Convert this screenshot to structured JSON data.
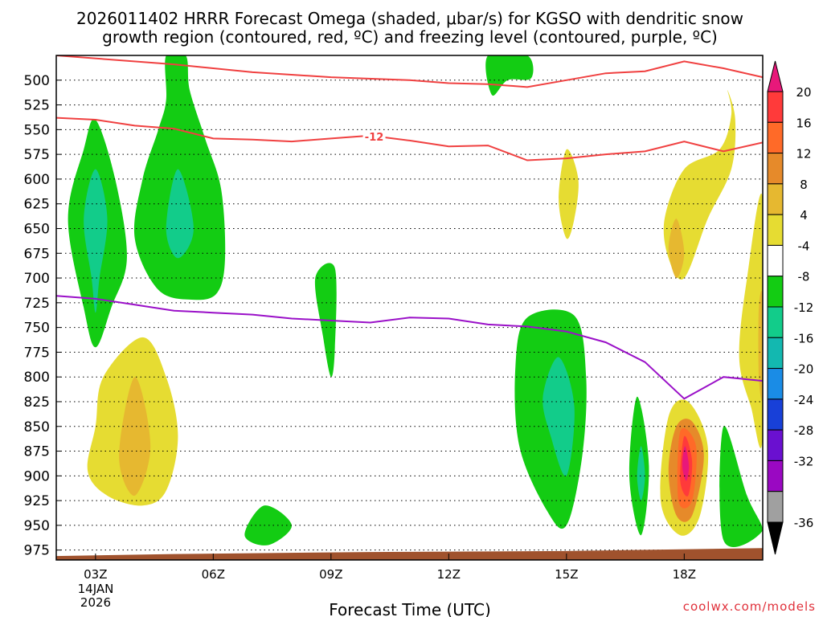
{
  "chart_data": {
    "type": "heatmap",
    "title_line1": "2026011402 HRRR Forecast Omega (shaded, μbar/s) for KGSO with dendritic snow",
    "title_line2": "growth region (contoured, red, ºC) and freezing level (contoured, purple, ºC)",
    "xlabel": "Forecast Time (UTC)",
    "credit": "coolwx.com/models",
    "x_range": [
      2,
      20
    ],
    "y_range": [
      475,
      985
    ],
    "x_ticks": [
      {
        "x": 3,
        "label": "03Z"
      },
      {
        "x": 6,
        "label": "06Z"
      },
      {
        "x": 9,
        "label": "09Z"
      },
      {
        "x": 12,
        "label": "12Z"
      },
      {
        "x": 15,
        "label": "15Z"
      },
      {
        "x": 18,
        "label": "18Z"
      }
    ],
    "date_label_line1": "14JAN",
    "date_label_line2": "2026",
    "y_ticks": [
      500,
      525,
      550,
      575,
      600,
      625,
      650,
      675,
      700,
      725,
      750,
      775,
      800,
      825,
      850,
      875,
      900,
      925,
      950,
      975
    ],
    "colorbar": {
      "labels": [
        "20",
        "16",
        "12",
        "8",
        "4",
        "-4",
        "-8",
        "-12",
        "-16",
        "-20",
        "-24",
        "-28",
        "-32",
        "-36"
      ],
      "segments": [
        {
          "color": "#ff3a3a",
          "label": "16 to 20"
        },
        {
          "color": "#ff6a28",
          "label": "12 to 16"
        },
        {
          "color": "#e68a2a",
          "label": "8 to 12"
        },
        {
          "color": "#e6b830",
          "label": "4 to 8"
        },
        {
          "color": "#e6dc32",
          "label": "4 to 4 (light)"
        },
        {
          "color": "#ffffff",
          "label": "-4 to 4"
        },
        {
          "color": "#13cc13",
          "label": "-8 to -4"
        },
        {
          "color": "#12cc8a",
          "label": "-12 to -8"
        },
        {
          "color": "#13b8b0",
          "label": "-16 to -12"
        },
        {
          "color": "#1a8ce6",
          "label": "-20 to -16"
        },
        {
          "color": "#1840d8",
          "label": "-24 to -20"
        },
        {
          "color": "#6a10d0",
          "label": "-28 to -24"
        },
        {
          "color": "#9a08c2",
          "label": "-32 to -28"
        },
        {
          "color": "#a0a0a0",
          "label": "-36 to -32"
        }
      ],
      "top_color": "#e8187a",
      "bottom_color": "#000000"
    },
    "contours": {
      "dgz_label": "-12",
      "dgz_upper": [
        [
          2,
          470
        ],
        [
          5,
          484
        ],
        [
          7,
          492
        ],
        [
          9,
          497
        ],
        [
          11,
          500
        ],
        [
          12,
          503
        ],
        [
          13,
          504
        ],
        [
          14,
          507
        ],
        [
          15,
          500
        ],
        [
          16,
          493
        ],
        [
          17,
          491
        ],
        [
          18,
          481
        ],
        [
          19,
          488
        ],
        [
          20,
          497
        ]
      ],
      "dgz_lower": [
        [
          2,
          538
        ],
        [
          3,
          540
        ],
        [
          4,
          546
        ],
        [
          5,
          549
        ],
        [
          6,
          559
        ],
        [
          7,
          560
        ],
        [
          8,
          562
        ],
        [
          9,
          559
        ],
        [
          10,
          556
        ],
        [
          11,
          561
        ],
        [
          12,
          567
        ],
        [
          13,
          566
        ],
        [
          14,
          581
        ],
        [
          15,
          579
        ],
        [
          16,
          575
        ],
        [
          17,
          572
        ],
        [
          18,
          562
        ],
        [
          19,
          572
        ],
        [
          20,
          563
        ]
      ],
      "freezing_level": [
        [
          2,
          718
        ],
        [
          3,
          721
        ],
        [
          4,
          727
        ],
        [
          5,
          733
        ],
        [
          6,
          735
        ],
        [
          7,
          737
        ],
        [
          8,
          741
        ],
        [
          9,
          743
        ],
        [
          10,
          745
        ],
        [
          11,
          740
        ],
        [
          12,
          741
        ],
        [
          13,
          747
        ],
        [
          14,
          749
        ],
        [
          15,
          754
        ],
        [
          16,
          765
        ],
        [
          17,
          785
        ],
        [
          18,
          822
        ],
        [
          19,
          800
        ],
        [
          20,
          804
        ]
      ]
    },
    "terrain_pressure": [
      [
        2,
        981
      ],
      [
        5,
        979
      ],
      [
        10,
        977
      ],
      [
        15,
        976
      ],
      [
        20,
        973
      ]
    ],
    "shaded_regions": [
      {
        "kind": "upward",
        "level": "-8 to -4",
        "color": "#13cc13",
        "shape": [
          [
            3,
            540
          ],
          [
            3.5,
            600
          ],
          [
            3.8,
            680
          ],
          [
            3.4,
            730
          ],
          [
            3,
            770
          ],
          [
            2.7,
            730
          ],
          [
            2.3,
            640
          ],
          [
            2.7,
            570
          ]
        ]
      },
      {
        "kind": "upward",
        "level": "-12 to -8",
        "color": "#12cc8a",
        "shape": [
          [
            3,
            590
          ],
          [
            3.3,
            640
          ],
          [
            3.1,
            700
          ],
          [
            3,
            735
          ],
          [
            2.9,
            700
          ],
          [
            2.7,
            640
          ]
        ]
      },
      {
        "kind": "upward",
        "level": "-8 to -4",
        "color": "#13cc13",
        "shape": [
          [
            4.8,
            470
          ],
          [
            5.3,
            470
          ],
          [
            5.4,
            510
          ],
          [
            5.8,
            560
          ],
          [
            6.2,
            610
          ],
          [
            6.3,
            680
          ],
          [
            6.1,
            715
          ],
          [
            5.5,
            722
          ],
          [
            4.6,
            712
          ],
          [
            4,
            660
          ],
          [
            4.2,
            600
          ],
          [
            4.6,
            550
          ],
          [
            4.8,
            520
          ]
        ]
      },
      {
        "kind": "upward",
        "level": "-12 to -8",
        "color": "#12cc8a",
        "shape": [
          [
            5.1,
            590
          ],
          [
            5.5,
            650
          ],
          [
            5.1,
            680
          ],
          [
            4.8,
            650
          ]
        ]
      },
      {
        "kind": "downward",
        "level": "4 to 8",
        "color": "#e6dc32",
        "shape": [
          [
            3.2,
            800
          ],
          [
            4.2,
            760
          ],
          [
            4.8,
            800
          ],
          [
            5.1,
            860
          ],
          [
            4.8,
            915
          ],
          [
            4.2,
            930
          ],
          [
            3.3,
            920
          ],
          [
            2.8,
            895
          ],
          [
            3.0,
            850
          ]
        ]
      },
      {
        "kind": "downward",
        "level": "8 to 12",
        "color": "#e6b830",
        "shape": [
          [
            4.0,
            800
          ],
          [
            4.4,
            870
          ],
          [
            4.0,
            920
          ],
          [
            3.6,
            880
          ]
        ]
      },
      {
        "kind": "upward",
        "level": "-8 to -4",
        "color": "#13cc13",
        "shape": [
          [
            8.6,
            700
          ],
          [
            9.1,
            690
          ],
          [
            9.1,
            770
          ],
          [
            9.0,
            800
          ],
          [
            8.8,
            760
          ]
        ]
      },
      {
        "kind": "upward",
        "level": "-8 to -4",
        "color": "#13cc13",
        "shape": [
          [
            7.3,
            930
          ],
          [
            8.0,
            950
          ],
          [
            7.4,
            970
          ],
          [
            6.8,
            960
          ]
        ]
      },
      {
        "kind": "upward",
        "level": "-8 to -4",
        "color": "#13cc13",
        "shape": [
          [
            13.0,
            475
          ],
          [
            14.0,
            475
          ],
          [
            14.1,
            498
          ],
          [
            13.5,
            500
          ],
          [
            13.1,
            515
          ]
        ]
      },
      {
        "kind": "upward",
        "level": "-8 to -4",
        "color": "#13cc13",
        "shape": [
          [
            14.0,
            740
          ],
          [
            15.2,
            738
          ],
          [
            15.5,
            800
          ],
          [
            15.4,
            880
          ],
          [
            15.0,
            950
          ],
          [
            14.5,
            935
          ],
          [
            13.8,
            870
          ],
          [
            13.7,
            790
          ]
        ]
      },
      {
        "kind": "upward",
        "level": "-12 to -8",
        "color": "#12cc8a",
        "shape": [
          [
            14.8,
            780
          ],
          [
            15.2,
            830
          ],
          [
            15.0,
            900
          ],
          [
            14.6,
            860
          ],
          [
            14.4,
            820
          ]
        ]
      },
      {
        "kind": "upward",
        "level": "-8 to -4",
        "color": "#13cc13",
        "shape": [
          [
            16.8,
            820
          ],
          [
            17.1,
            890
          ],
          [
            16.9,
            960
          ],
          [
            16.6,
            900
          ]
        ]
      },
      {
        "kind": "upward",
        "level": "-12 to -8",
        "color": "#12cc8a",
        "shape": [
          [
            16.9,
            870
          ],
          [
            17.0,
            900
          ],
          [
            16.9,
            925
          ],
          [
            16.8,
            900
          ]
        ]
      },
      {
        "kind": "upward",
        "level": "-8 to -4",
        "color": "#13cc13",
        "shape": [
          [
            19.0,
            850
          ],
          [
            19.6,
            920
          ],
          [
            20,
            955
          ],
          [
            19,
            965
          ]
        ]
      },
      {
        "kind": "downward",
        "level": "4 to 8",
        "color": "#e6dc32",
        "shape": [
          [
            15.0,
            570
          ],
          [
            15.3,
            600
          ],
          [
            15.2,
            640
          ],
          [
            15.0,
            660
          ],
          [
            14.8,
            620
          ]
        ]
      },
      {
        "kind": "downward",
        "level": "4 to 8",
        "color": "#e6dc32",
        "shape": [
          [
            17.5,
            640
          ],
          [
            18.0,
            590
          ],
          [
            18.9,
            570
          ],
          [
            19.2,
            535
          ],
          [
            19.1,
            510
          ],
          [
            19.3,
            540
          ],
          [
            19.2,
            590
          ],
          [
            18.6,
            640
          ],
          [
            18.0,
            700
          ],
          [
            17.6,
            680
          ]
        ]
      },
      {
        "kind": "downward",
        "level": "8 to 12",
        "color": "#e6b830",
        "shape": [
          [
            17.8,
            640
          ],
          [
            18.0,
            675
          ],
          [
            17.8,
            700
          ],
          [
            17.6,
            670
          ]
        ]
      },
      {
        "kind": "downward",
        "level": "4 to 8",
        "color": "#e6dc32",
        "shape": [
          [
            17.6,
            840
          ],
          [
            18.1,
            825
          ],
          [
            18.6,
            870
          ],
          [
            18.4,
            940
          ],
          [
            17.9,
            960
          ],
          [
            17.4,
            925
          ]
        ]
      },
      {
        "kind": "downward",
        "level": "8 to 12",
        "color": "#e68a2a",
        "shape": [
          [
            17.8,
            850
          ],
          [
            18.2,
            845
          ],
          [
            18.5,
            880
          ],
          [
            18.2,
            940
          ],
          [
            17.8,
            940
          ],
          [
            17.6,
            895
          ]
        ]
      },
      {
        "kind": "downward",
        "level": "12 to 16",
        "color": "#ff6a28",
        "shape": [
          [
            17.9,
            855
          ],
          [
            18.3,
            870
          ],
          [
            18.2,
            925
          ],
          [
            17.85,
            925
          ]
        ]
      },
      {
        "kind": "downward",
        "level": "16 to 20",
        "color": "#ff3a3a",
        "shape": [
          [
            18.0,
            860
          ],
          [
            18.2,
            885
          ],
          [
            18.1,
            920
          ],
          [
            17.9,
            905
          ]
        ]
      },
      {
        "kind": "downward",
        "level": "above 20",
        "color": "#e8187a",
        "shape": [
          [
            18.02,
            870
          ],
          [
            18.12,
            890
          ],
          [
            18.05,
            905
          ],
          [
            17.95,
            890
          ]
        ]
      },
      {
        "kind": "downward",
        "level": "4 to 8",
        "color": "#e6dc32",
        "shape": [
          [
            19.6,
            700
          ],
          [
            20,
            620
          ],
          [
            20,
            860
          ],
          [
            19.7,
            830
          ],
          [
            19.4,
            780
          ]
        ]
      },
      {
        "kind": "downward",
        "level": "8 to 12",
        "color": "#e6b830",
        "shape": [
          [
            19.9,
            730
          ],
          [
            20,
            720
          ],
          [
            20,
            820
          ],
          [
            19.9,
            800
          ]
        ]
      }
    ]
  }
}
